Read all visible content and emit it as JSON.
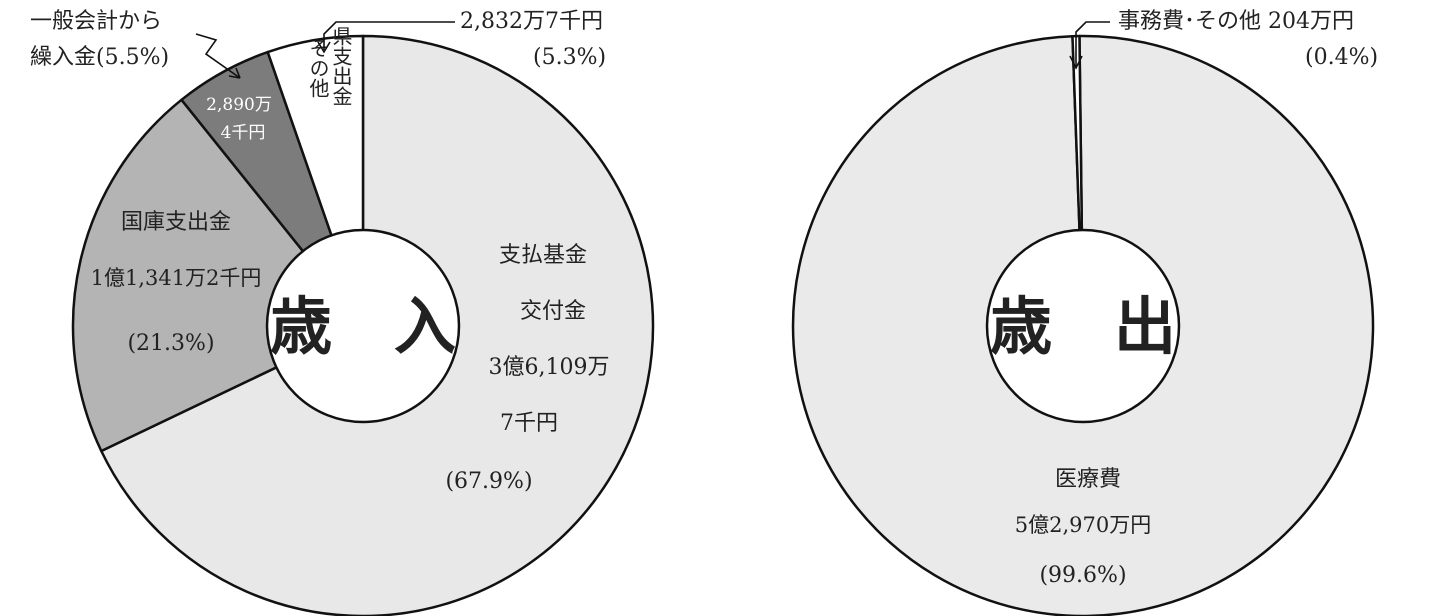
{
  "chart_data": [
    {
      "type": "pie",
      "center_label": "歳　入",
      "unit": "千円",
      "slices": [
        {
          "name": "支払基金交付金",
          "value": 361097,
          "percent": 67.9,
          "color": "#e8e8e8",
          "label_lines": [
            "支払基金",
            "交付金",
            "3億6,109万",
            "7千円",
            "(67.9%)"
          ]
        },
        {
          "name": "国庫支出金",
          "value": 113412,
          "percent": 21.3,
          "color": "#b4b4b4",
          "label_lines": [
            "国庫支出金",
            "1億1,341万2千円",
            "(21.3%)"
          ]
        },
        {
          "name": "一般会計から繰入金",
          "value": 28904,
          "percent": 5.5,
          "color": "#7c7c7c",
          "label_lines": [
            "2,890万",
            "4千円"
          ],
          "callout_lines": [
            "一般会計から",
            "繰入金(5.5%)"
          ]
        },
        {
          "name": "県支出金・その他",
          "value": 28327,
          "percent": 5.3,
          "color": "#ffffff",
          "vertical_labels": [
            "県支出金",
            "その他"
          ],
          "callout_lines": [
            "2,832万7千円",
            "(5.3%)"
          ]
        }
      ]
    },
    {
      "type": "pie",
      "center_label": "歳　出",
      "unit": "千円",
      "slices": [
        {
          "name": "医療費",
          "value": 529700,
          "percent": 99.6,
          "color": "#eaeaea",
          "label_lines": [
            "医療費",
            "5億2,970万円",
            "(99.6%)"
          ]
        },
        {
          "name": "事務費・その他",
          "value": 2040,
          "percent": 0.4,
          "color": "#ffffff",
          "callout_lines": [
            "事務費･その他 204万円",
            "(0.4%)"
          ]
        }
      ]
    }
  ]
}
